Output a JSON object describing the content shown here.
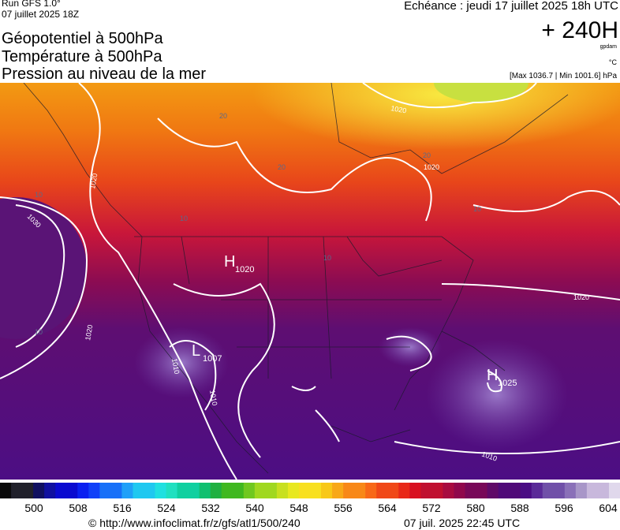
{
  "header": {
    "run": "Run GFS 1.0°",
    "date": "07 juillet 2025 18Z",
    "title_lines": [
      "Géopotentiel à 500hPa",
      "Température à 500hPa",
      "Pression au niveau de la mer"
    ],
    "echeance": "Echéance : jeudi 17 juillet 2025 18h UTC",
    "horizon": "+ 240H",
    "unit_gpdam": "gpdam",
    "unit_c": "°C",
    "maxmin": "[Max 1036.7 | Min 1001.6] hPa"
  },
  "map": {
    "centers": [
      {
        "symbol": "H",
        "value": "1020"
      },
      {
        "symbol": "L",
        "value": "1007"
      },
      {
        "symbol": "H",
        "value": "1025"
      }
    ],
    "isobar_labels": [
      "1030",
      "1020",
      "1020",
      "1010",
      "1010",
      "1020",
      "1020",
      "1020",
      "1010"
    ],
    "temperature_labels": [
      "20",
      "20",
      "20",
      "10",
      "10",
      "10",
      "10",
      "10"
    ]
  },
  "colorbar": {
    "labels": [
      500,
      508,
      516,
      524,
      532,
      540,
      548,
      556,
      564,
      572,
      580,
      588,
      596,
      604
    ]
  },
  "footer": {
    "url": "© http://www.infoclimat.fr/z/gfs/atl1/500/240",
    "timestamp": "07 juil. 2025 22:45 UTC"
  }
}
